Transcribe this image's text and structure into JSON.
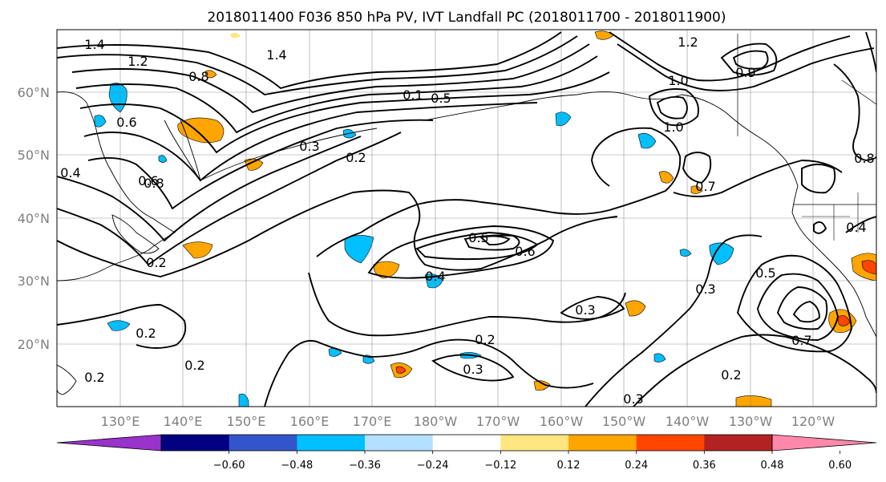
{
  "title": "2018011400 F036 850 hPa PV, IVT Landfall PC (2018011700 - 2018011900)",
  "map": {
    "lon_labels": [
      "130°E",
      "140°E",
      "150°E",
      "160°E",
      "170°E",
      "180°W",
      "170°W",
      "160°W",
      "150°W",
      "140°W",
      "130°W",
      "120°W"
    ],
    "lat_labels": [
      "60°N",
      "50°N",
      "40°N",
      "30°N",
      "20°N"
    ],
    "contour_labels": [
      "1.4",
      "1.2",
      "1.4",
      "0.8",
      "0.6",
      "0.3",
      "0.2",
      "0.1",
      "0.5",
      "0.6",
      "0.8",
      "0.4",
      "0.2",
      "0.5",
      "0.6",
      "0.4",
      "0.3",
      "0.2",
      "0.3",
      "0.2",
      "0.2",
      "0.2",
      "1.2",
      "1.0",
      "1.0",
      "0.9",
      "0.7",
      "0.8",
      "0.4",
      "0.3",
      "0.5",
      "0.7",
      "0.2",
      "0.3"
    ],
    "colors": {
      "coast": "#000000",
      "grid": "#808080",
      "shade_pos_low": "#ffe680",
      "shade_pos_mid": "#ffa500",
      "shade_pos_high": "#ff4500",
      "shade_neg_low": "#b3e0ff",
      "shade_neg_mid": "#00bfff"
    }
  },
  "colorbar": {
    "ticks": [
      "−0.60",
      "−0.48",
      "−0.36",
      "−0.24",
      "−0.12",
      "0.12",
      "0.24",
      "0.36",
      "0.48",
      "0.60"
    ],
    "colors": [
      "#9933cc",
      "#000080",
      "#3355cc",
      "#00bfff",
      "#b3e0ff",
      "#ffffff",
      "#ffe680",
      "#ffa500",
      "#ff4500",
      "#b22222",
      "#ff88aa"
    ]
  }
}
